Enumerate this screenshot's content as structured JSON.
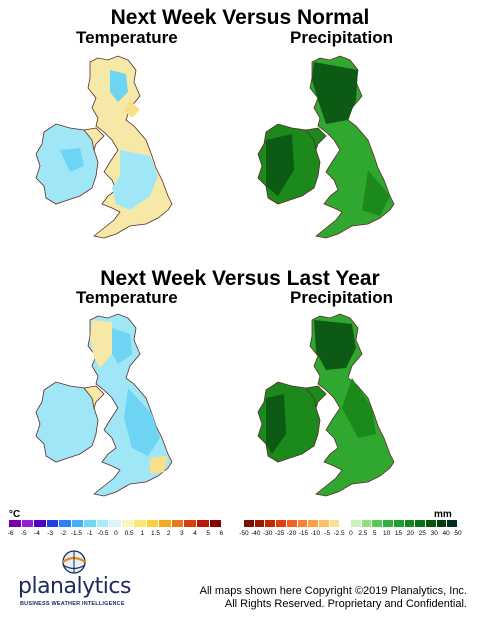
{
  "panels": {
    "top_title": "Next Week Versus Normal",
    "bottom_title": "Next Week Versus Last Year",
    "temperature_label": "Temperature",
    "precipitation_label": "Precipitation"
  },
  "legend_temp": {
    "unit": "°C",
    "ticks": [
      "-6",
      "-5",
      "-4",
      "-3",
      "-2",
      "-1.5",
      "-1",
      "-0.5",
      "0",
      "0.5",
      "1",
      "1.5",
      "2",
      "3",
      "4",
      "5",
      "6"
    ],
    "colors": [
      "#7a00a8",
      "#9a1fd0",
      "#5000c8",
      "#2040e8",
      "#2f7ff4",
      "#3fb0f8",
      "#6cd8f8",
      "#a8ecf8",
      "#d8f6fa",
      "#f8f6b8",
      "#f8e870",
      "#f8d040",
      "#f4a820",
      "#e87818",
      "#d84010",
      "#b81808",
      "#880000"
    ]
  },
  "legend_precip": {
    "unit": "mm",
    "ticks": [
      "-50",
      "-40",
      "-30",
      "-25",
      "-20",
      "-15",
      "-10",
      "-5",
      "-2.5",
      "0",
      "2.5",
      "5",
      "10",
      "15",
      "20",
      "25",
      "30",
      "40",
      "50"
    ],
    "colors": [
      "#7a1000",
      "#a01800",
      "#c42800",
      "#e04010",
      "#f06020",
      "#f88030",
      "#fba040",
      "#fcc060",
      "#fde090",
      "#ffffff",
      "#c8f0c0",
      "#90e080",
      "#58c858",
      "#30b040",
      "#20a030",
      "#108820",
      "#087018",
      "#005810",
      "#004008",
      "#003018"
    ]
  },
  "colors": {
    "temp_warm": "#f8e08a",
    "temp_mid": "#f6e9a8",
    "temp_cool": "#9fe6f6",
    "temp_cooler": "#6dd4f4",
    "precip_dark": "#0d5a14",
    "precip_mid": "#1b8a1b",
    "precip_light": "#30a830"
  },
  "brand": {
    "name": "planalytics",
    "tagline": "BUSINESS WEATHER INTELLIGENCE"
  },
  "footer": {
    "line1": "All maps shown here Copyright ©2019 Planalytics, Inc.",
    "line2": "All Rights Reserved. Proprietary and Confidential."
  }
}
